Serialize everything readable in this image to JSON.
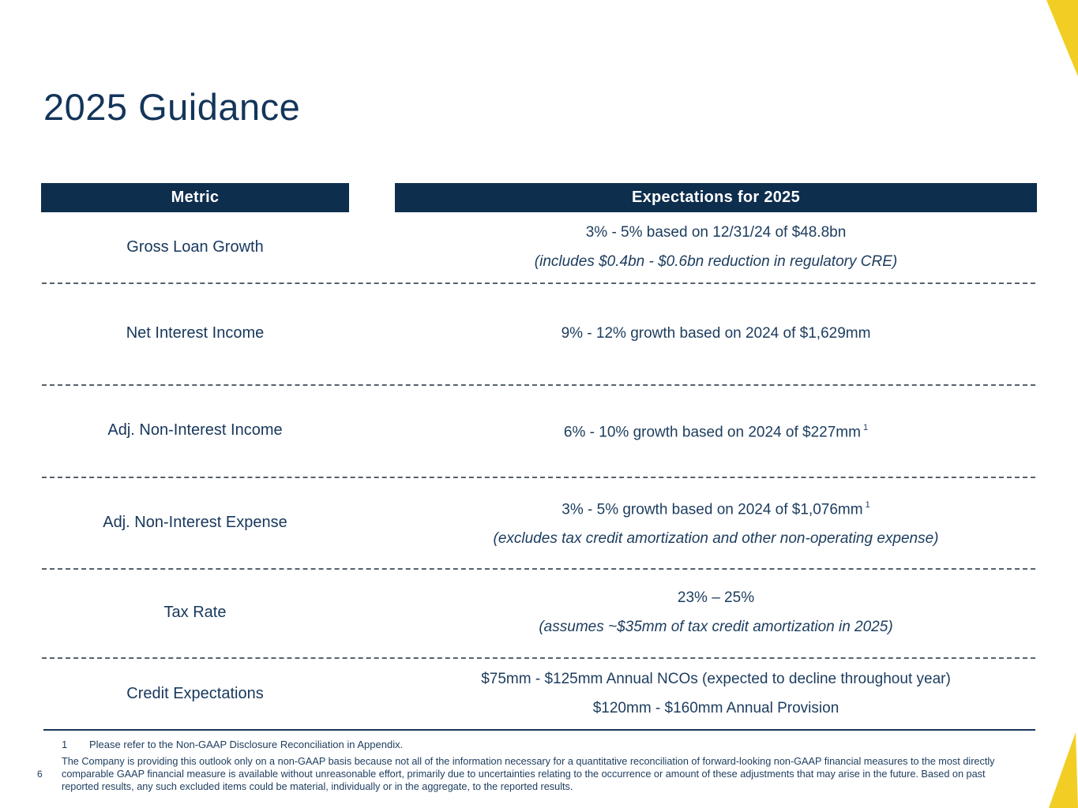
{
  "title": "2025 Guidance",
  "colors": {
    "navy_bar": "#0e2e4e",
    "text_navy": "#1c3c5e",
    "accent_yellow": "#f2ce24",
    "dash_gray": "#57616b"
  },
  "table": {
    "headers": {
      "metric": "Metric",
      "expectations": "Expectations for 2025"
    },
    "rows": [
      {
        "metric": "Gross Loan Growth",
        "lines": [
          {
            "text": "3% - 5% based on 12/31/24 of $48.8bn",
            "italic": false
          },
          {
            "text": "(includes $0.4bn - $0.6bn reduction in regulatory CRE)",
            "italic": true
          }
        ]
      },
      {
        "metric": "Net Interest Income",
        "lines": [
          {
            "text": "9% - 12% growth based on 2024 of $1,629mm",
            "italic": false
          }
        ]
      },
      {
        "metric": "Adj. Non-Interest Income",
        "lines": [
          {
            "text": "6% - 10% growth based on 2024 of $227mm",
            "italic": false,
            "sup": "1"
          }
        ]
      },
      {
        "metric": "Adj. Non-Interest Expense",
        "lines": [
          {
            "text": "3% - 5% growth based on 2024 of $1,076mm",
            "italic": false,
            "sup": "1"
          },
          {
            "text": "(excludes tax credit amortization and other non-operating expense)",
            "italic": true
          }
        ]
      },
      {
        "metric": "Tax Rate",
        "lines": [
          {
            "text": "23% – 25%",
            "italic": false
          },
          {
            "text": "(assumes ~$35mm of tax credit amortization in 2025)",
            "italic": true
          }
        ]
      },
      {
        "metric": "Credit Expectations",
        "lines": [
          {
            "text": "$75mm - $125mm Annual NCOs (expected to decline throughout year)",
            "italic": false
          },
          {
            "text": "$120mm - $160mm Annual Provision",
            "italic": false
          }
        ]
      }
    ]
  },
  "footnotes": {
    "marker": "1",
    "note1": "Please refer to the Non-GAAP Disclosure Reconciliation in Appendix.",
    "disclaimer": "The Company is providing this outlook only on a non-GAAP basis because not all of the information necessary for a quantitative reconciliation of forward-looking non-GAAP financial measures to the most directly comparable GAAP financial measure is available without unreasonable effort, primarily due to uncertainties relating to the occurrence or amount of these adjustments that may arise in the future. Based on past reported results, any such excluded items could be material, individually or in the aggregate, to the reported results."
  },
  "page_number": "6"
}
